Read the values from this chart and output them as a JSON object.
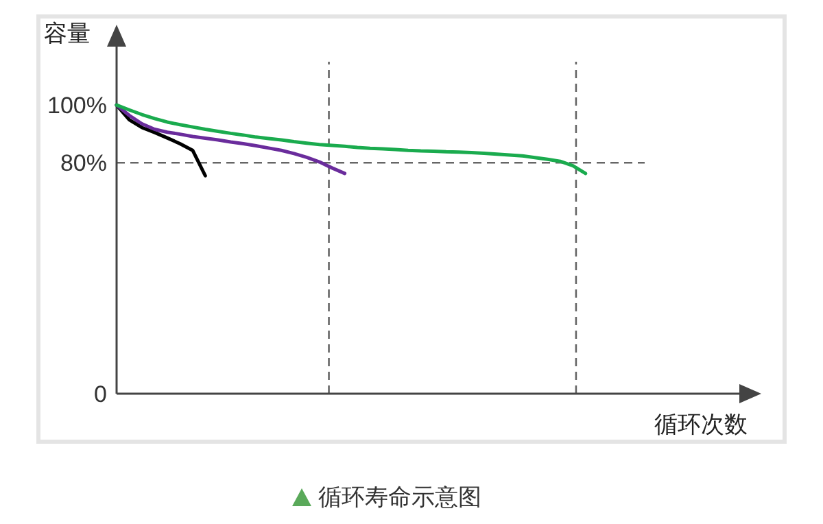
{
  "chart_data": {
    "type": "line",
    "title": "循环寿命示意图",
    "xlabel": "循环次数",
    "ylabel": "容量",
    "categories": [
      null,
      null,
      null,
      null,
      null,
      null,
      null,
      null,
      null,
      null,
      null,
      null,
      null,
      null,
      null,
      null,
      null,
      null,
      null,
      null,
      null,
      null,
      null,
      null,
      null,
      null,
      null,
      null,
      null,
      null,
      null,
      null,
      null,
      null,
      null,
      null,
      null,
      null,
      null,
      null,
      null,
      null,
      null,
      null,
      null,
      null,
      null,
      null,
      null,
      null
    ],
    "ylim": [
      0,
      115
    ],
    "yticks": [
      {
        "value": 0,
        "label": "0"
      },
      {
        "value": 80,
        "label": "80%"
      },
      {
        "value": 100,
        "label": "100%"
      }
    ],
    "tick_labels": "y",
    "series": [
      {
        "color": "#000000",
        "values": [
          100,
          94.9,
          92.2,
          90.5,
          88.6,
          86.6,
          84.3,
          75.5,
          null,
          null,
          null,
          null,
          null,
          null,
          null,
          null,
          null,
          null,
          null,
          null,
          null,
          null,
          null,
          null,
          null,
          null,
          null,
          null,
          null,
          null,
          null,
          null,
          null,
          null,
          null,
          null,
          null,
          null,
          null,
          null,
          null,
          null,
          null,
          null,
          null,
          null,
          null,
          null,
          null,
          null
        ]
      },
      {
        "color": "#6a2c9c",
        "values": [
          100,
          96.4,
          93.5,
          91.6,
          90.6,
          89.9,
          89.1,
          88.5,
          87.9,
          87.2,
          86.6,
          85.9,
          85.1,
          84.3,
          83.2,
          81.9,
          80.3,
          78.2,
          76.3,
          null,
          null,
          null,
          null,
          null,
          null,
          null,
          null,
          null,
          null,
          null,
          null,
          null,
          null,
          null,
          null,
          null,
          null,
          null,
          null,
          null,
          null,
          null,
          null,
          null,
          null,
          null,
          null,
          null,
          null,
          null
        ]
      },
      {
        "color": "#1aab4e",
        "values": [
          100,
          98.3,
          96.7,
          95.3,
          94.1,
          93.2,
          92.4,
          91.6,
          90.9,
          90.2,
          89.6,
          88.9,
          88.4,
          87.9,
          87.3,
          86.8,
          86.3,
          86,
          85.7,
          85.3,
          85,
          84.8,
          84.6,
          84.3,
          84.1,
          84,
          83.8,
          83.7,
          83.5,
          83.3,
          83,
          82.7,
          82.4,
          81.8,
          81.2,
          80.5,
          79,
          76.3,
          null,
          null,
          null,
          null,
          null,
          null,
          null,
          null,
          null,
          null,
          null,
          null
        ]
      }
    ],
    "ref_lines": [
      {
        "axis": "y",
        "value": 80,
        "color": "#666666",
        "line_style": "dashed"
      }
    ]
  }
}
